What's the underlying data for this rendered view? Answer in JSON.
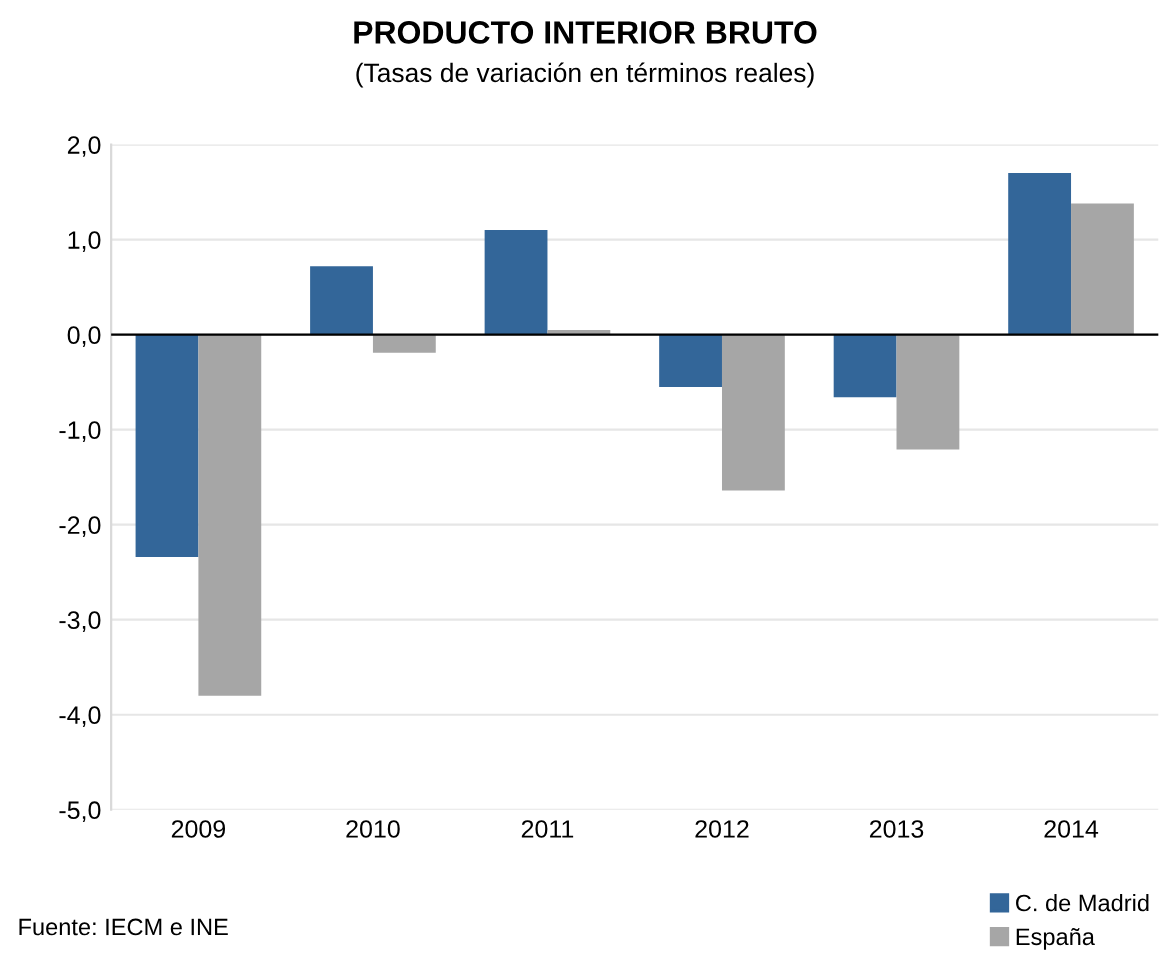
{
  "chart_data": {
    "type": "bar",
    "title": "PRODUCTO INTERIOR BRUTO",
    "subtitle": "(Tasas de variación en términos reales)",
    "categories": [
      "2009",
      "2010",
      "2011",
      "2012",
      "2013",
      "2014"
    ],
    "series": [
      {
        "name": "C. de Madrid",
        "color": "#336699",
        "values": [
          -2.34,
          0.72,
          1.1,
          -0.55,
          -0.66,
          1.7
        ]
      },
      {
        "name": "España",
        "color": "#a6a6a6",
        "values": [
          -3.8,
          -0.19,
          0.05,
          -1.64,
          -1.21,
          1.38
        ]
      }
    ],
    "ylim": [
      -5,
      2
    ],
    "yticks": [
      {
        "value": -5,
        "label": "-5,0"
      },
      {
        "value": -4,
        "label": "-4,0"
      },
      {
        "value": -3,
        "label": "-3,0"
      },
      {
        "value": -2,
        "label": "-2,0"
      },
      {
        "value": -1,
        "label": "-1,0"
      },
      {
        "value": 0,
        "label": "0,0"
      },
      {
        "value": 1,
        "label": "1,0"
      },
      {
        "value": 2,
        "label": "2,0"
      }
    ],
    "grid": "y",
    "legend": "bottom right",
    "annotations": [
      "Fuente: IECM e INE"
    ]
  }
}
